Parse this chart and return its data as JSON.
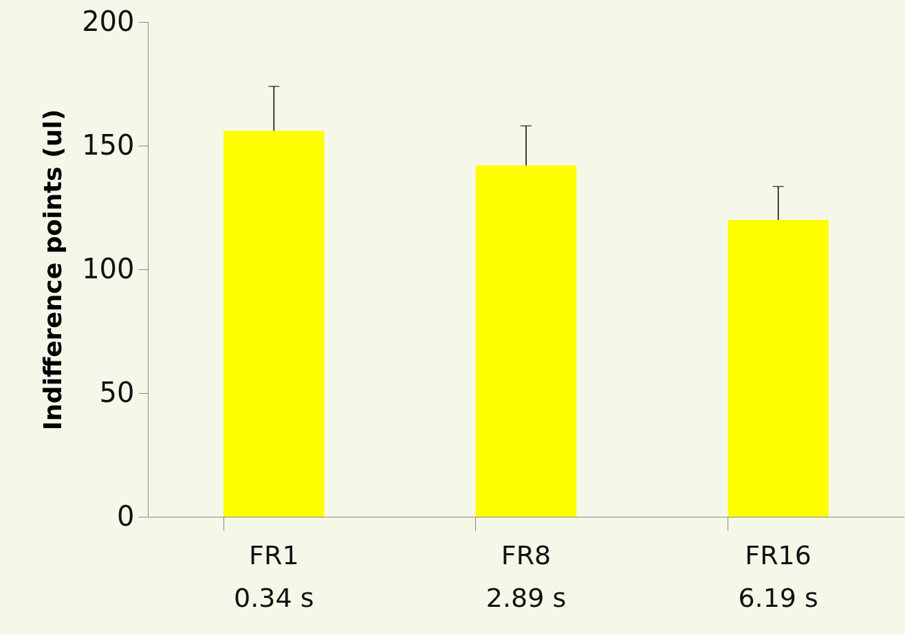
{
  "chart_data": {
    "type": "bar",
    "ylabel": "Indifference points (ul)",
    "categories": [
      "FR1\n0.34 s",
      "FR8\n2.89 s",
      "FR16\n6.19 s"
    ],
    "values": [
      156,
      142,
      120
    ],
    "errors": [
      [
        156,
        174
      ],
      [
        142,
        158
      ],
      [
        120,
        133.5
      ]
    ],
    "color": "#ffff00",
    "ylim": [
      0,
      200
    ],
    "yticks": [
      0,
      50,
      100,
      150,
      200
    ],
    "grid": false
  }
}
